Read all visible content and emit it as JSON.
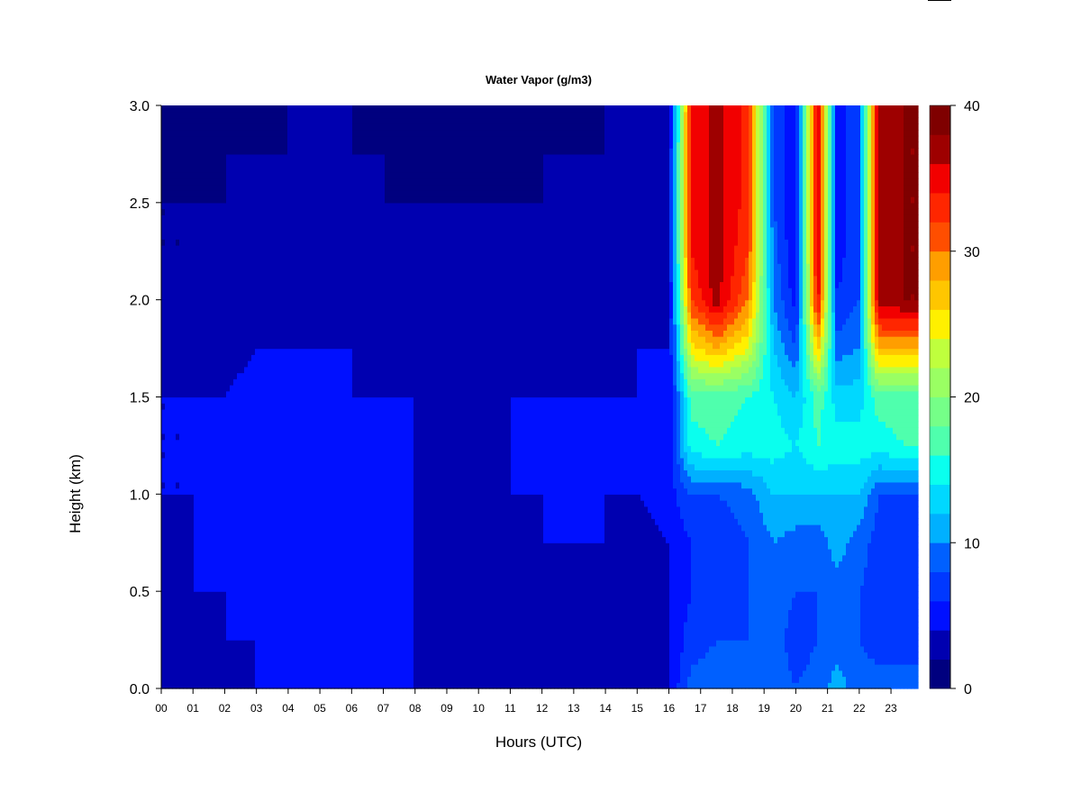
{
  "chart_data": {
    "type": "heatmap",
    "title": "Water Vapor (g/m3)",
    "xlabel": "Hours (UTC)",
    "ylabel": "Height (km)",
    "x_ticks": [
      "00",
      "01",
      "02",
      "03",
      "04",
      "05",
      "06",
      "07",
      "08",
      "09",
      "10",
      "11",
      "12",
      "13",
      "14",
      "15",
      "16",
      "17",
      "18",
      "19",
      "20",
      "21",
      "22",
      "23"
    ],
    "y_ticks": [
      "0.0",
      "0.5",
      "1.0",
      "1.5",
      "2.0",
      "2.5",
      "3.0"
    ],
    "xlim": [
      0,
      23.85
    ],
    "ylim": [
      0,
      3.0
    ],
    "colorbar": {
      "min": 0,
      "max": 40,
      "step": 2,
      "tick_values": [
        0,
        10,
        20,
        30,
        40
      ],
      "tick_labels": [
        "0",
        "10",
        "20",
        "30",
        "40"
      ],
      "colors": [
        "#00007f",
        "#0000b0",
        "#0000e0",
        "#0010ff",
        "#0038ff",
        "#0060ff",
        "#0088ff",
        "#00b0ff",
        "#00d8ff",
        "#0affee",
        "#2affd0",
        "#4fffad",
        "#75ff88",
        "#9aff63",
        "#bfff3d",
        "#e4ff18",
        "#fff000",
        "#ffc600",
        "#ff9e00",
        "#ff7600",
        "#ff4e00",
        "#ff2600",
        "#f20000",
        "#c80000",
        "#9e0000",
        "#7f0000"
      ]
    },
    "height_levels_km": [
      0.0,
      0.25,
      0.5,
      0.75,
      1.0,
      1.25,
      1.5,
      1.75,
      2.0,
      2.25,
      2.5,
      2.75,
      3.0
    ],
    "profile_times_h": [
      0,
      1,
      2,
      3,
      4,
      5,
      6,
      7,
      8,
      9,
      10,
      11,
      12,
      13,
      14,
      15,
      16,
      16.7,
      17.5,
      18.5,
      19.3,
      20.0,
      20.7,
      21.3,
      22.0,
      22.6,
      23.4,
      23.85
    ],
    "profiles_g_m3": [
      [
        3,
        3,
        3,
        3,
        4,
        4,
        4,
        3,
        3,
        2,
        2,
        1,
        1
      ],
      [
        3,
        3,
        4,
        4,
        4,
        4,
        4,
        3,
        3,
        2,
        2,
        1,
        1
      ],
      [
        3,
        4,
        4,
        4,
        4,
        4,
        4,
        3,
        3,
        2,
        2,
        2,
        1
      ],
      [
        4,
        4,
        5,
        5,
        5,
        5,
        5,
        4,
        3,
        3,
        2,
        2,
        1
      ],
      [
        5,
        5,
        5,
        5,
        5,
        5,
        5,
        4,
        3,
        3,
        2,
        2,
        2
      ],
      [
        5,
        5,
        5,
        5,
        5,
        5,
        5,
        4,
        4,
        3,
        3,
        2,
        2
      ],
      [
        5,
        5,
        5,
        5,
        5,
        5,
        4,
        4,
        3,
        3,
        3,
        2,
        2
      ],
      [
        5,
        5,
        4,
        4,
        4,
        4,
        4,
        3,
        3,
        3,
        2,
        2,
        1
      ],
      [
        4,
        4,
        4,
        4,
        4,
        4,
        4,
        3,
        3,
        3,
        2,
        1,
        1
      ],
      [
        3,
        3,
        3,
        3,
        3,
        3,
        3,
        3,
        2,
        2,
        2,
        1,
        1
      ],
      [
        3,
        3,
        3,
        3,
        3,
        3,
        3,
        3,
        2,
        2,
        2,
        1,
        1
      ],
      [
        3,
        3,
        3,
        3,
        4,
        4,
        4,
        3,
        3,
        2,
        2,
        1,
        1
      ],
      [
        3,
        3,
        3,
        4,
        4,
        4,
        4,
        3,
        3,
        2,
        2,
        2,
        1
      ],
      [
        3,
        3,
        3,
        4,
        4,
        4,
        4,
        3,
        3,
        2,
        2,
        2,
        1
      ],
      [
        3,
        3,
        3,
        4,
        4,
        4,
        4,
        3,
        3,
        3,
        2,
        2,
        2
      ],
      [
        3,
        3,
        3,
        3,
        4,
        4,
        4,
        4,
        3,
        3,
        3,
        2,
        2
      ],
      [
        4,
        4,
        4,
        4,
        5,
        5,
        4,
        4,
        3,
        3,
        3,
        3,
        2
      ],
      [
        9,
        7,
        6,
        6,
        8,
        15,
        17,
        25,
        32,
        34,
        34,
        34,
        34
      ],
      [
        9,
        8,
        7,
        6,
        8,
        16,
        17,
        28,
        37,
        37,
        37,
        37,
        37
      ],
      [
        9,
        8,
        8,
        8,
        9,
        15,
        16,
        24,
        30,
        32,
        33,
        33,
        33
      ],
      [
        9,
        9,
        9,
        10,
        12,
        15,
        14,
        12,
        10,
        9,
        8,
        8,
        8
      ],
      [
        8,
        7,
        8,
        9,
        12,
        14,
        12,
        8,
        5,
        4,
        4,
        4,
        4
      ],
      [
        9,
        8,
        8,
        9,
        12,
        16,
        17,
        27,
        35,
        37,
        37,
        37,
        37
      ],
      [
        11,
        9,
        9,
        11,
        12,
        15,
        13,
        9,
        6,
        5,
        5,
        5,
        5
      ],
      [
        9,
        8,
        8,
        9,
        12,
        15,
        13,
        10,
        8,
        8,
        8,
        8,
        8
      ],
      [
        9,
        7,
        7,
        7,
        8,
        15,
        17,
        28,
        37,
        37,
        37,
        37,
        37
      ],
      [
        9,
        7,
        7,
        7,
        8,
        16,
        17,
        28,
        38,
        38,
        38,
        38,
        38
      ],
      [
        9,
        7,
        7,
        7,
        8,
        16,
        17,
        28,
        38,
        38,
        38,
        38,
        38
      ]
    ]
  }
}
